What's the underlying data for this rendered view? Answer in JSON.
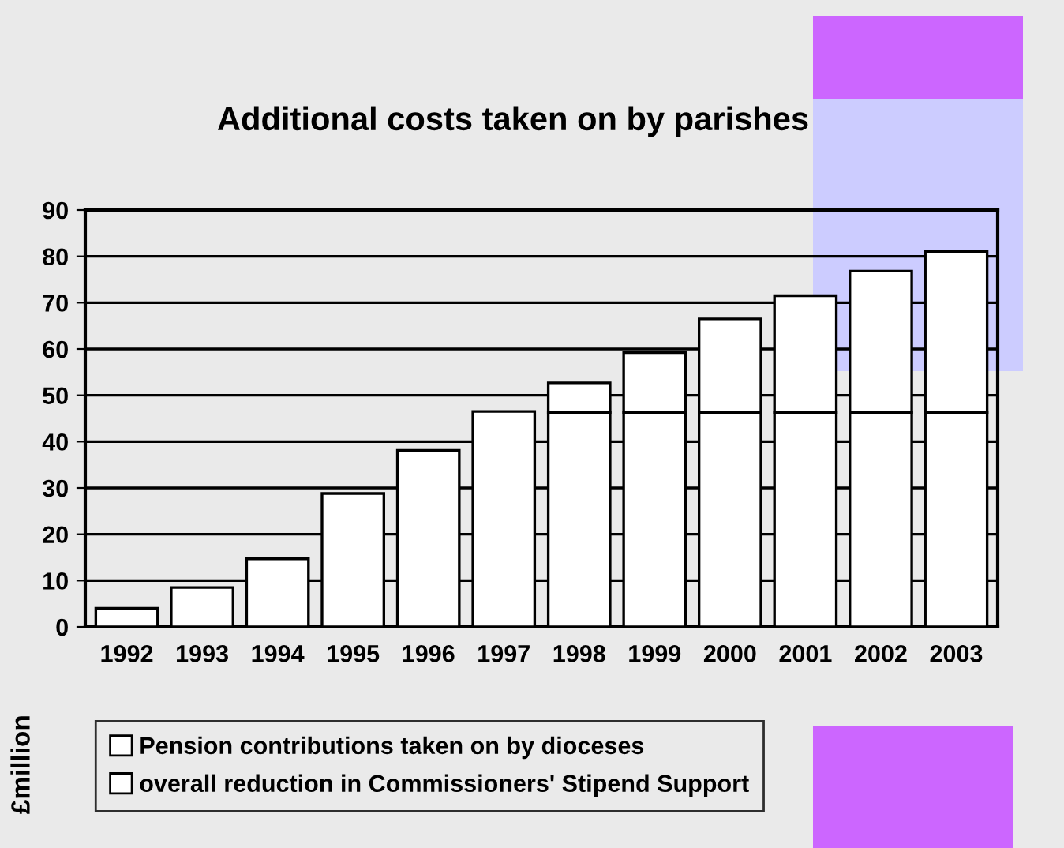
{
  "chart_data": {
    "type": "bar",
    "title": "Additional costs taken on by parishes",
    "ylabel": "£million",
    "categories": [
      "1992",
      "1993",
      "1994",
      "1995",
      "1996",
      "1997",
      "1998",
      "1999",
      "2000",
      "2001",
      "2002",
      "2003"
    ],
    "stacked": true,
    "series": [
      {
        "name": "overall reduction in Commissioners' Stipend Support",
        "color": "#ffffff",
        "values": [
          4,
          8.5,
          14.7,
          28.8,
          38.1,
          46.5,
          46.3,
          46.3,
          46.3,
          46.3,
          46.3,
          46.3
        ]
      },
      {
        "name": "Pension contributions taken on by dioceses",
        "color": "#ffffff",
        "values": [
          null,
          null,
          null,
          null,
          null,
          null,
          6.4,
          12.9,
          20.2,
          25.2,
          30.5,
          34.8
        ]
      }
    ],
    "ylim": [
      0,
      90
    ],
    "yticks": [
      0,
      10,
      20,
      30,
      40,
      50,
      60,
      70,
      80,
      90
    ],
    "grid": "y",
    "legend": "bottom"
  }
}
